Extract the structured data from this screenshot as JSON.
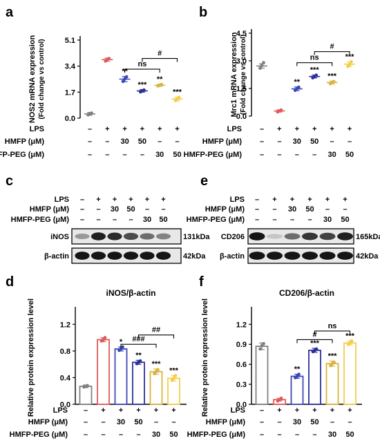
{
  "panel_letters": {
    "a": "a",
    "b": "b",
    "c": "c",
    "d": "d",
    "e": "e",
    "f": "f"
  },
  "treatment_rows": {
    "lps": "LPS",
    "hmfp": "HMFP (μM)",
    "hmfp_peg": "HMFP-PEG (μM)",
    "lps_values": [
      "–",
      "+",
      "+",
      "+",
      "+",
      "+"
    ],
    "hmfp_values": [
      "–",
      "–",
      "30",
      "50",
      "–",
      "–"
    ],
    "hmfp_peg_values": [
      "–",
      "–",
      "–",
      "–",
      "30",
      "50"
    ]
  },
  "western_blots": {
    "c": {
      "top_band": "iNOS",
      "top_kda": "131kDa",
      "bottom_band": "β-actin",
      "bottom_kda": "42kDa",
      "top_intensity": [
        0.35,
        0.9,
        0.85,
        0.7,
        0.55,
        0.45
      ],
      "bottom_intensity": [
        0.95,
        0.95,
        0.95,
        0.95,
        0.95,
        0.95
      ]
    },
    "e": {
      "top_band": "CD206",
      "top_kda": "165kDa",
      "bottom_band": "β-actin",
      "bottom_kda": "42kDa",
      "top_intensity": [
        0.95,
        0.15,
        0.55,
        0.8,
        0.75,
        0.9
      ],
      "bottom_intensity": [
        0.95,
        0.95,
        0.95,
        0.95,
        0.95,
        0.95
      ]
    }
  },
  "colors": [
    "#808080",
    "#e05a5a",
    "#3b48b5",
    "#2a2f9a",
    "#d9b43e",
    "#f4cd4a"
  ],
  "chart_data": [
    {
      "id": "a",
      "type": "scatter",
      "title": "",
      "ylabel": "NOS2 mRNA expression",
      "ylabel2": "(Fold change vs control)",
      "ylim": [
        0,
        5.1
      ],
      "yticks": [
        "0.0",
        "1.7",
        "3.4",
        "5.1"
      ],
      "ytick_values": [
        0,
        1.7,
        3.4,
        5.1
      ],
      "means": [
        0.28,
        3.82,
        2.55,
        1.78,
        2.15,
        1.25
      ],
      "errors": [
        0.09,
        0.1,
        0.17,
        0.08,
        0.07,
        0.12
      ],
      "points": [
        [
          0.22,
          0.3,
          0.33
        ],
        [
          3.73,
          3.85,
          3.9
        ],
        [
          2.4,
          2.57,
          2.7
        ],
        [
          1.72,
          1.8,
          1.84
        ],
        [
          2.1,
          2.16,
          2.2
        ],
        [
          1.15,
          1.26,
          1.36
        ]
      ],
      "sig": [
        "",
        "",
        "**",
        "***",
        "**",
        "***"
      ],
      "brackets": [
        {
          "from": 2,
          "to": 4,
          "label": "ns",
          "y": 3.2
        },
        {
          "from": 3,
          "to": 5,
          "label": "#",
          "y": 3.9
        }
      ]
    },
    {
      "id": "b",
      "type": "scatter",
      "title": "",
      "ylabel": "Mrc1 mRNA expression",
      "ylabel2": "(Fold change vs control)",
      "ylim": [
        0,
        4.5
      ],
      "yticks": [
        "0.0",
        "1.5",
        "3.0",
        "4.5"
      ],
      "ytick_values": [
        0,
        1.5,
        3,
        4.5
      ],
      "means": [
        2.72,
        0.28,
        1.48,
        2.15,
        1.82,
        2.82
      ],
      "errors": [
        0.12,
        0.06,
        0.1,
        0.08,
        0.08,
        0.12
      ],
      "points": [
        [
          2.6,
          2.75,
          2.9
        ],
        [
          0.23,
          0.28,
          0.33
        ],
        [
          1.4,
          1.5,
          1.57
        ],
        [
          2.08,
          2.16,
          2.22
        ],
        [
          1.76,
          1.83,
          1.88
        ],
        [
          2.7,
          2.8,
          2.95
        ]
      ],
      "sig": [
        "",
        "",
        "**",
        "***",
        "***",
        "***"
      ],
      "brackets": [
        {
          "from": 2,
          "to": 4,
          "label": "ns",
          "y": 2.9
        },
        {
          "from": 3,
          "to": 5,
          "label": "#",
          "y": 3.5
        }
      ]
    },
    {
      "id": "d",
      "type": "bar",
      "title": "iNOS/β-actin",
      "ylabel": "Relative protein expression level",
      "ylim": [
        0,
        1.4
      ],
      "yticks": [
        "0.0",
        "0.4",
        "0.8",
        "1.2"
      ],
      "ytick_values": [
        0,
        0.4,
        0.8,
        1.2
      ],
      "means": [
        0.27,
        0.97,
        0.83,
        0.63,
        0.49,
        0.39
      ],
      "errors": [
        0.02,
        0.03,
        0.03,
        0.03,
        0.04,
        0.04
      ],
      "points": [
        [
          0.26,
          0.27,
          0.28
        ],
        [
          0.95,
          0.97,
          1.0
        ],
        [
          0.81,
          0.83,
          0.86
        ],
        [
          0.61,
          0.63,
          0.65
        ],
        [
          0.46,
          0.49,
          0.52
        ],
        [
          0.36,
          0.39,
          0.43
        ]
      ],
      "sig": [
        "",
        "",
        "*",
        "**",
        "***",
        "***"
      ],
      "brackets": [
        {
          "from": 2,
          "to": 4,
          "label": "###",
          "y": 0.9
        },
        {
          "from": 3,
          "to": 5,
          "label": "##",
          "y": 1.04
        }
      ]
    },
    {
      "id": "f",
      "type": "bar",
      "title": "CD206/β-actin",
      "ylabel": "Relative protein expression level",
      "ylim": [
        0,
        1.4
      ],
      "yticks": [
        "0.0",
        "0.3",
        "0.6",
        "0.9",
        "1.2"
      ],
      "ytick_values": [
        0,
        0.3,
        0.6,
        0.9,
        1.2
      ],
      "means": [
        0.87,
        0.07,
        0.42,
        0.81,
        0.61,
        0.92
      ],
      "errors": [
        0.05,
        0.02,
        0.03,
        0.03,
        0.04,
        0.03
      ],
      "points": [
        [
          0.83,
          0.88,
          0.91
        ],
        [
          0.05,
          0.07,
          0.09
        ],
        [
          0.4,
          0.42,
          0.45
        ],
        [
          0.79,
          0.81,
          0.83
        ],
        [
          0.58,
          0.61,
          0.63
        ],
        [
          0.9,
          0.92,
          0.95
        ]
      ],
      "sig": [
        "",
        "",
        "**",
        "***",
        "***",
        "***"
      ],
      "brackets": [
        {
          "from": 2,
          "to": 4,
          "label": "#",
          "y": 0.97
        },
        {
          "from": 3,
          "to": 5,
          "label": "ns",
          "y": 1.1
        }
      ]
    }
  ]
}
